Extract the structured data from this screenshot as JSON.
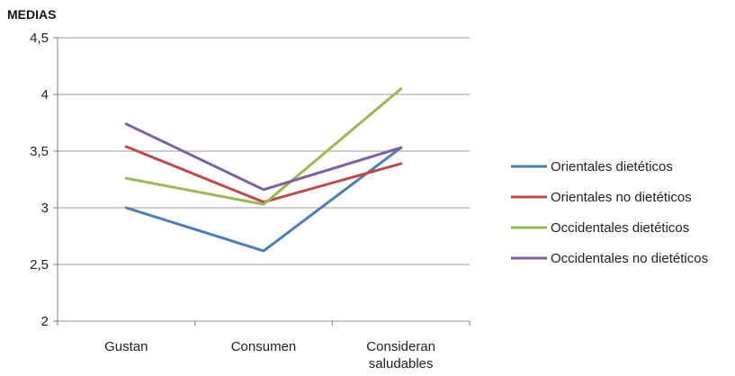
{
  "chart_data": {
    "type": "line",
    "title": "MEDIAS",
    "categories": [
      "Gustan",
      "Consumen",
      "Consideran saludables"
    ],
    "category_lines": [
      [
        "Gustan"
      ],
      [
        "Consumen"
      ],
      [
        "Consideran",
        "saludables"
      ]
    ],
    "ylim": [
      2,
      4.5
    ],
    "yticks": [
      2,
      2.5,
      3,
      3.5,
      4,
      4.5
    ],
    "ytick_labels": [
      "2",
      "2,5",
      "3",
      "3,5",
      "4",
      "4,5"
    ],
    "grid": true,
    "legend_position": "right",
    "series": [
      {
        "name": "Orientales dietéticos",
        "color": "#4a7ebb",
        "values": [
          3.0,
          2.62,
          3.53
        ]
      },
      {
        "name": "Orientales no dietéticos",
        "color": "#be4b48",
        "values": [
          3.54,
          3.05,
          3.39
        ]
      },
      {
        "name": "Occidentales dietéticos",
        "color": "#98b954",
        "values": [
          3.26,
          3.03,
          4.05
        ]
      },
      {
        "name": "Occidentales no dietéticos",
        "color": "#7d60a0",
        "values": [
          3.74,
          3.16,
          3.53
        ]
      }
    ]
  }
}
